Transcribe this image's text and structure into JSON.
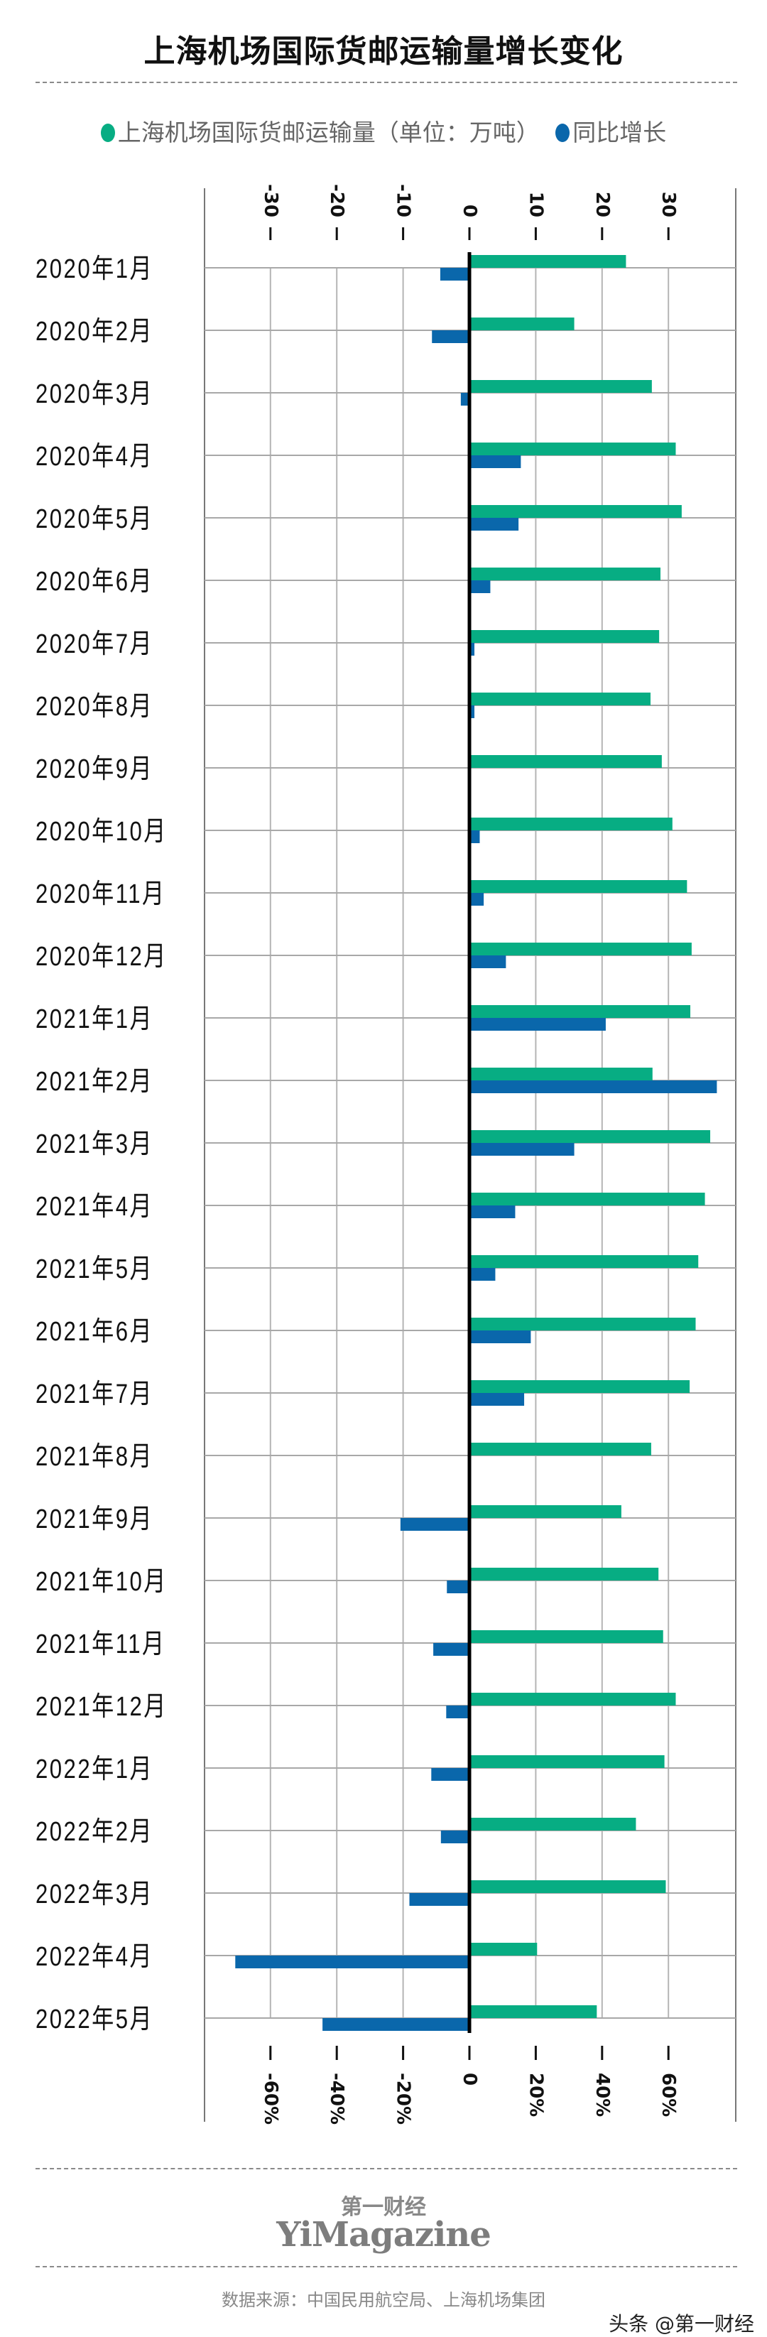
{
  "title": "上海机场国际货邮运输量增长变化",
  "legend": [
    {
      "label": "上海机场国际货邮运输量（单位：万吨）",
      "color": "#07ad83"
    },
    {
      "label": "同比增长",
      "color": "#0a67ab"
    }
  ],
  "chart_data": {
    "type": "bar",
    "orientation": "horizontal",
    "categories": [
      "2020年1月",
      "2020年2月",
      "2020年3月",
      "2020年4月",
      "2020年5月",
      "2020年6月",
      "2020年7月",
      "2020年8月",
      "2020年9月",
      "2020年10月",
      "2020年11月",
      "2020年12月",
      "2021年1月",
      "2021年2月",
      "2021年3月",
      "2021年4月",
      "2021年5月",
      "2021年6月",
      "2021年7月",
      "2021年8月",
      "2021年9月",
      "2021年10月",
      "2021年11月",
      "2021年12月",
      "2022年1月",
      "2022年2月",
      "2022年3月",
      "2022年4月",
      "2022年5月"
    ],
    "series": [
      {
        "name": "上海机场国际货邮运输量（单位：万吨）",
        "axis": "top",
        "color": "#07ad83",
        "values": [
          23.6,
          15.8,
          27.5,
          31.1,
          32.0,
          28.8,
          28.6,
          27.3,
          29.0,
          30.6,
          32.8,
          33.5,
          33.3,
          27.6,
          36.3,
          35.5,
          34.5,
          34.1,
          33.2,
          27.4,
          22.9,
          28.5,
          29.2,
          31.1,
          29.4,
          25.1,
          29.6,
          10.2,
          19.2
        ]
      },
      {
        "name": "同比增长",
        "axis": "bottom",
        "unit": "%",
        "color": "#0a67ab",
        "values": [
          -8.8,
          -11.3,
          -2.6,
          15.5,
          14.8,
          6.3,
          1.5,
          1.5,
          0.5,
          3.1,
          4.3,
          11.0,
          41.1,
          74.6,
          31.6,
          13.8,
          7.8,
          18.5,
          16.5,
          0,
          -20.8,
          -6.8,
          -10.9,
          -7.0,
          -11.5,
          -8.6,
          -18.1,
          -70.6,
          -44.3
        ]
      }
    ],
    "top_axis": {
      "range": [
        -40,
        40
      ],
      "ticks": [
        -30,
        -20,
        -10,
        0,
        10,
        20,
        30
      ],
      "tick_labels": [
        "-30",
        "-20",
        "-10",
        "0",
        "10",
        "20",
        "30"
      ]
    },
    "bottom_axis": {
      "range": [
        -80,
        80
      ],
      "ticks": [
        -60,
        -40,
        -20,
        0,
        20,
        40,
        60
      ],
      "tick_labels": [
        "-60%",
        "-40%",
        "-20%",
        "0",
        "20%",
        "40%",
        "60%"
      ]
    },
    "grid": true
  },
  "footer": {
    "brand_cn": "第一财经",
    "brand_en": "YiMagazine",
    "source": "数据来源：中国民用航空局、上海机场集团",
    "watermark": "头条 @第一财经"
  }
}
